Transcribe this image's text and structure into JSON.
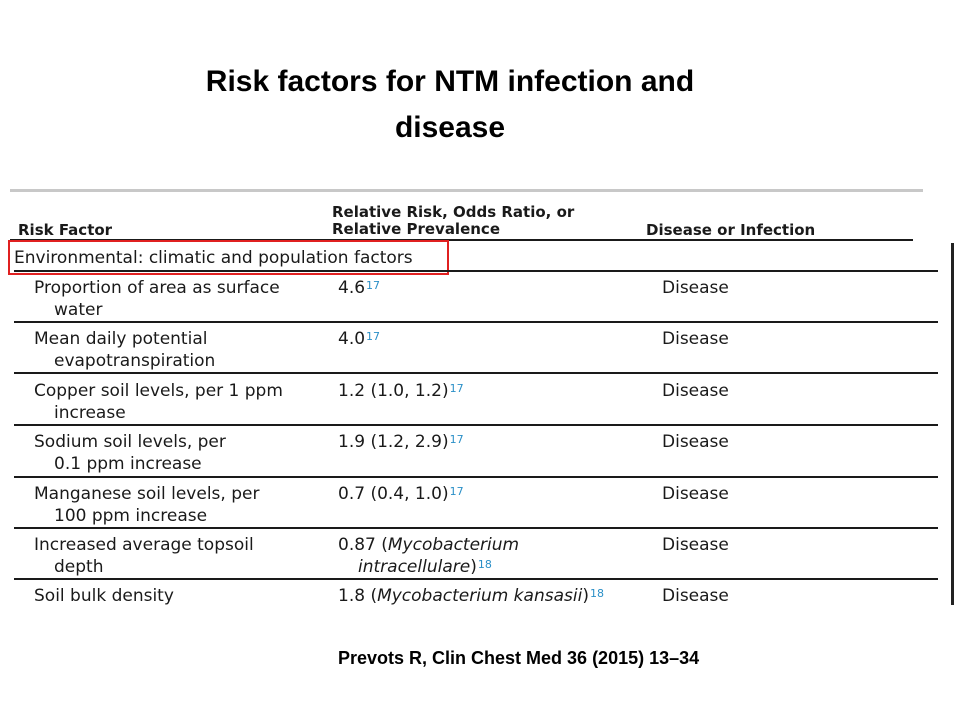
{
  "title": {
    "line1": "Risk factors for NTM infection and",
    "line2": "disease"
  },
  "table": {
    "headers": {
      "risk_factor": "Risk Factor",
      "relative_line1": "Relative Risk, Odds Ratio, or",
      "relative_line2": "Relative Prevalence",
      "disease": "Disease or Infection"
    },
    "section": "Environmental: climatic and population factors",
    "rows": [
      {
        "factor_l1": "Proportion of area as surface",
        "factor_l2": "water",
        "value": "4.6",
        "ref": "17",
        "disease": "Disease"
      },
      {
        "factor_l1": "Mean daily potential",
        "factor_l2": "evapotranspiration",
        "value": "4.0",
        "ref": "17",
        "disease": "Disease"
      },
      {
        "factor_l1": "Copper soil levels, per 1 ppm",
        "factor_l2": "increase",
        "value": "1.2 (1.0, 1.2)",
        "ref": "17",
        "disease": "Disease"
      },
      {
        "factor_l1": "Sodium soil levels, per",
        "factor_l2": "0.1 ppm increase",
        "value": "1.9 (1.2, 2.9)",
        "ref": "17",
        "disease": "Disease"
      },
      {
        "factor_l1": "Manganese soil levels, per",
        "factor_l2": "100 ppm increase",
        "value": "0.7 (0.4, 1.0)",
        "ref": "17",
        "disease": "Disease"
      },
      {
        "factor_l1": "Increased average topsoil",
        "factor_l2": "depth",
        "value_pre": "0.87 (",
        "value_italic": "Mycobacterium",
        "value_l2_italic": "intracellulare",
        "value_l2_post": ")",
        "ref": "18",
        "disease": "Disease"
      },
      {
        "factor_l1": "Soil bulk density",
        "value_pre": "1.8 (",
        "value_italic": "Mycobacterium kansasii",
        "value_post": ")",
        "ref": "18",
        "disease": "Disease"
      }
    ]
  },
  "citation": "Prevots R, Clin Chest Med 36 (2015) 13–34",
  "colors": {
    "highlight_box": "#e02020",
    "reference": "#2a8fc7"
  }
}
